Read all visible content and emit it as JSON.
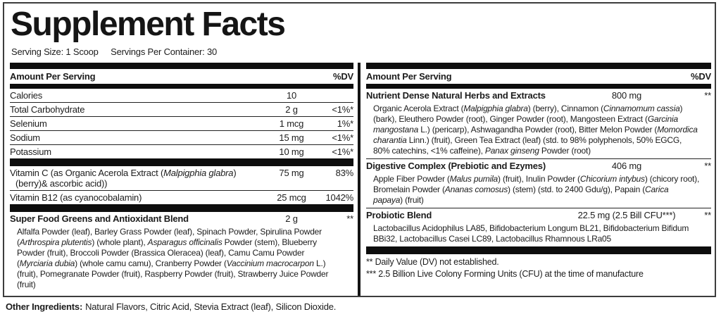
{
  "title": "Supplement Facts",
  "serving": {
    "size": "Serving Size: 1 Scoop",
    "per_container": "Servings Per Container: 30"
  },
  "table_header": {
    "amount_label": "Amount Per Serving",
    "dv_label": "%DV"
  },
  "left": {
    "nutrients": [
      {
        "name": "Calories",
        "amount": "10",
        "dv": ""
      },
      {
        "name": "Total Carbohydrate",
        "amount": "2 g",
        "dv": "<1%*"
      },
      {
        "name": "Selenium",
        "amount": "1 mcg",
        "dv": "1%*"
      },
      {
        "name": "Sodium",
        "amount": "15 mg",
        "dv": "<1%*"
      },
      {
        "name": "Potassium",
        "amount": "10 mg",
        "dv": "<1%*"
      }
    ],
    "vitamins": [
      {
        "name": "Vitamin C (as Organic Acerola Extract (_Malpigphia glabra_) (berry)& ascorbic acid))",
        "amount": "75 mg",
        "dv": "83%"
      },
      {
        "name": "Vitamin B12 (as cyanocobalamin)",
        "amount": "25 mcg",
        "dv": "1042%"
      }
    ],
    "blend": {
      "name": "Super Food Greens and Antioxidant Blend",
      "amount": "2 g",
      "dv": "**",
      "ingredients": "Alfalfa Powder (leaf), Barley Grass Powder (leaf), Spinach Powder, Spirulina Powder (_Arthrospira plutentis_) (whole plant), _Asparagus officinalis_ Powder (stem), Blueberry Powder (fruit), Broccoli Powder (Brassica Oleracea) (leaf), Camu Camu Powder (_Myrciaria dubia_) (whole camu camu), Cranberry Powder (_Vaccinium macrocarpon_ L.) (fruit), Pomegranate Powder (fruit), Raspberry Powder (fruit), Strawberry Juice Powder (fruit)"
    }
  },
  "right": {
    "sections": [
      {
        "name": "Nutrient Dense Natural Herbs and Extracts",
        "amount": "800 mg",
        "dv": "**",
        "ingredients": "Organic Acerola Extract (_Malpigphia glabra_) (berry), Cinnamon (_Cinnamomum cassia_) (bark), Eleuthero Powder (root), Ginger Powder (root), Mangosteen Extract (_Garcinia mangostana_ L.) (pericarp), Ashwagandha Powder (root), Bitter Melon Powder (_Momordica charantia_ Linn.) (fruit), Green Tea Extract (leaf) (std. to 98% polyphenols, 50% EGCG, 80% catechins, <1% caffeine), _Panax ginseng_ Powder (root)"
      },
      {
        "name": "Digestive Complex (Prebiotic and Ezymes)",
        "amount": "406 mg",
        "dv": "**",
        "ingredients": "Apple Fiber Powder (_Malus pumila_) (fruit), Inulin Powder (_Chicorium intybus_) (chicory root), Bromelain Powder (_Ananas comosus_) (stem) (std. to 2400 Gdu/g), Papain (_Carica papaya_) (fruit)"
      },
      {
        "name": "Probiotic Blend",
        "amount": "22.5 mg (2.5 Bill CFU***)",
        "dv": "**",
        "ingredients": "Lactobacillus Acidophilus LA85, Bifidobacterium Longum BL21, Bifidobacterium Bifidum BBi32, Lactobacillus Casei LC89, Lactobacillus Rhamnous LRa05"
      }
    ],
    "footnotes": [
      "** Daily Value (DV) not established.",
      "*** 2.5 Billion Live Colony Forming Units (CFU) at the time of manufacture"
    ]
  },
  "other_ingredients": {
    "label": "Other Ingredients:",
    "text": "Natural Flavors, Citric Acid, Stevia Extract (leaf), Silicon Dioxide."
  }
}
